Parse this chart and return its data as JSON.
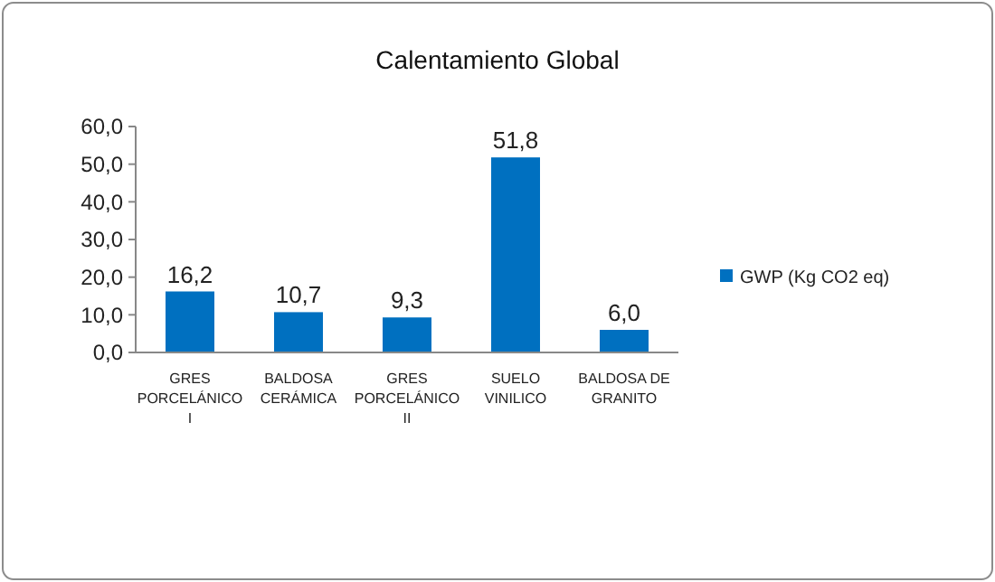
{
  "chart_data": {
    "type": "bar",
    "title": "Calentamiento Global",
    "categories": [
      "GRES PORCELÁNICO I",
      "BALDOSA CERÁMICA",
      "GRES PORCELÁNICO II",
      "SUELO VINILICO",
      "BALDOSA DE GRANITO"
    ],
    "series": [
      {
        "name": "GWP (Kg CO2 eq)",
        "color": "#0070c0",
        "values": [
          16.2,
          10.7,
          9.3,
          51.8,
          6.0
        ],
        "value_labels": [
          "16,2",
          "10,7",
          "9,3",
          "51,8",
          "6,0"
        ]
      }
    ],
    "ylim": [
      0,
      60
    ],
    "yticks": [
      {
        "value": 0,
        "label": "0,0"
      },
      {
        "value": 10,
        "label": "10,0"
      },
      {
        "value": 20,
        "label": "20,0"
      },
      {
        "value": 30,
        "label": "30,0"
      },
      {
        "value": 40,
        "label": "40,0"
      },
      {
        "value": 50,
        "label": "50,0"
      },
      {
        "value": 60,
        "label": "60,0"
      }
    ],
    "legend": "right"
  }
}
